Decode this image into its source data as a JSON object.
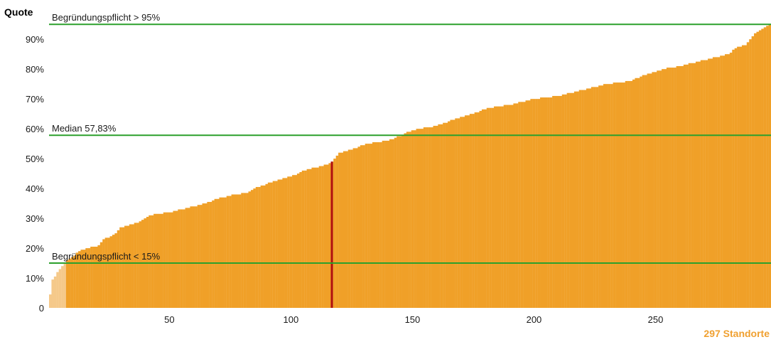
{
  "chart_data": {
    "type": "bar",
    "ylabel": "Quote",
    "ylim": [
      0,
      96
    ],
    "xlim": [
      0.5,
      297.5
    ],
    "y_ticks": [
      0,
      10,
      20,
      30,
      40,
      50,
      60,
      70,
      80,
      90
    ],
    "y_tick_labels": [
      "0",
      "10%",
      "20%",
      "30%",
      "40%",
      "50%",
      "60%",
      "70%",
      "80%",
      "90%"
    ],
    "x_ticks": [
      50,
      100,
      150,
      200,
      250
    ],
    "x_tick_labels": [
      "50",
      "100",
      "150",
      "200",
      "250"
    ],
    "bar_count": 297,
    "bar_count_label": "297 Standorte",
    "highlight_index": 117,
    "light_bar_count": 7,
    "value_points": [
      [
        1,
        4.5
      ],
      [
        2,
        9.5
      ],
      [
        3,
        10.5
      ],
      [
        4,
        12
      ],
      [
        5,
        13
      ],
      [
        6,
        14
      ],
      [
        7,
        15
      ],
      [
        8,
        16
      ],
      [
        10,
        17
      ],
      [
        13,
        19
      ],
      [
        16,
        20
      ],
      [
        20,
        20.5
      ],
      [
        21,
        21
      ],
      [
        22,
        22
      ],
      [
        23,
        23
      ],
      [
        26,
        24
      ],
      [
        28,
        25
      ],
      [
        30,
        27
      ],
      [
        35,
        28
      ],
      [
        38,
        29
      ],
      [
        40,
        30
      ],
      [
        42,
        31
      ],
      [
        50,
        32
      ],
      [
        55,
        33
      ],
      [
        60,
        34
      ],
      [
        65,
        35
      ],
      [
        68,
        36
      ],
      [
        72,
        37
      ],
      [
        77,
        38
      ],
      [
        82,
        38.5
      ],
      [
        85,
        40
      ],
      [
        90,
        41.5
      ],
      [
        95,
        43
      ],
      [
        100,
        44
      ],
      [
        103,
        45
      ],
      [
        105,
        46
      ],
      [
        110,
        47
      ],
      [
        115,
        48
      ],
      [
        117,
        49
      ],
      [
        118,
        50
      ],
      [
        120,
        52
      ],
      [
        125,
        53
      ],
      [
        128,
        54
      ],
      [
        132,
        55
      ],
      [
        140,
        56
      ],
      [
        143,
        57
      ],
      [
        146,
        58
      ],
      [
        150,
        59.5
      ],
      [
        153,
        60
      ],
      [
        160,
        61
      ],
      [
        165,
        62.5
      ],
      [
        170,
        64
      ],
      [
        175,
        65
      ],
      [
        178,
        66
      ],
      [
        182,
        67
      ],
      [
        190,
        68
      ],
      [
        195,
        69
      ],
      [
        200,
        70
      ],
      [
        210,
        71
      ],
      [
        215,
        72
      ],
      [
        220,
        73
      ],
      [
        225,
        74
      ],
      [
        230,
        75
      ],
      [
        240,
        76
      ],
      [
        245,
        78
      ],
      [
        250,
        79
      ],
      [
        253,
        80
      ],
      [
        260,
        81
      ],
      [
        265,
        82
      ],
      [
        270,
        83
      ],
      [
        275,
        84
      ],
      [
        280,
        85
      ],
      [
        283,
        87
      ],
      [
        287,
        88
      ],
      [
        289,
        90
      ],
      [
        291,
        92
      ],
      [
        293,
        93
      ],
      [
        295,
        94
      ],
      [
        297,
        95
      ]
    ],
    "reference_lines": [
      {
        "label": "Begründungspflicht > 95%",
        "value": 95
      },
      {
        "label": "Median 57,83%",
        "value": 57.83
      },
      {
        "label": "Begründungspflicht < 15%",
        "value": 15
      }
    ],
    "colors": {
      "bar": "#f0a028",
      "bar_light": "#f5c98a",
      "highlight": "#b01010",
      "reference_line": "#2ca02c",
      "count_label": "#f0a030"
    }
  }
}
